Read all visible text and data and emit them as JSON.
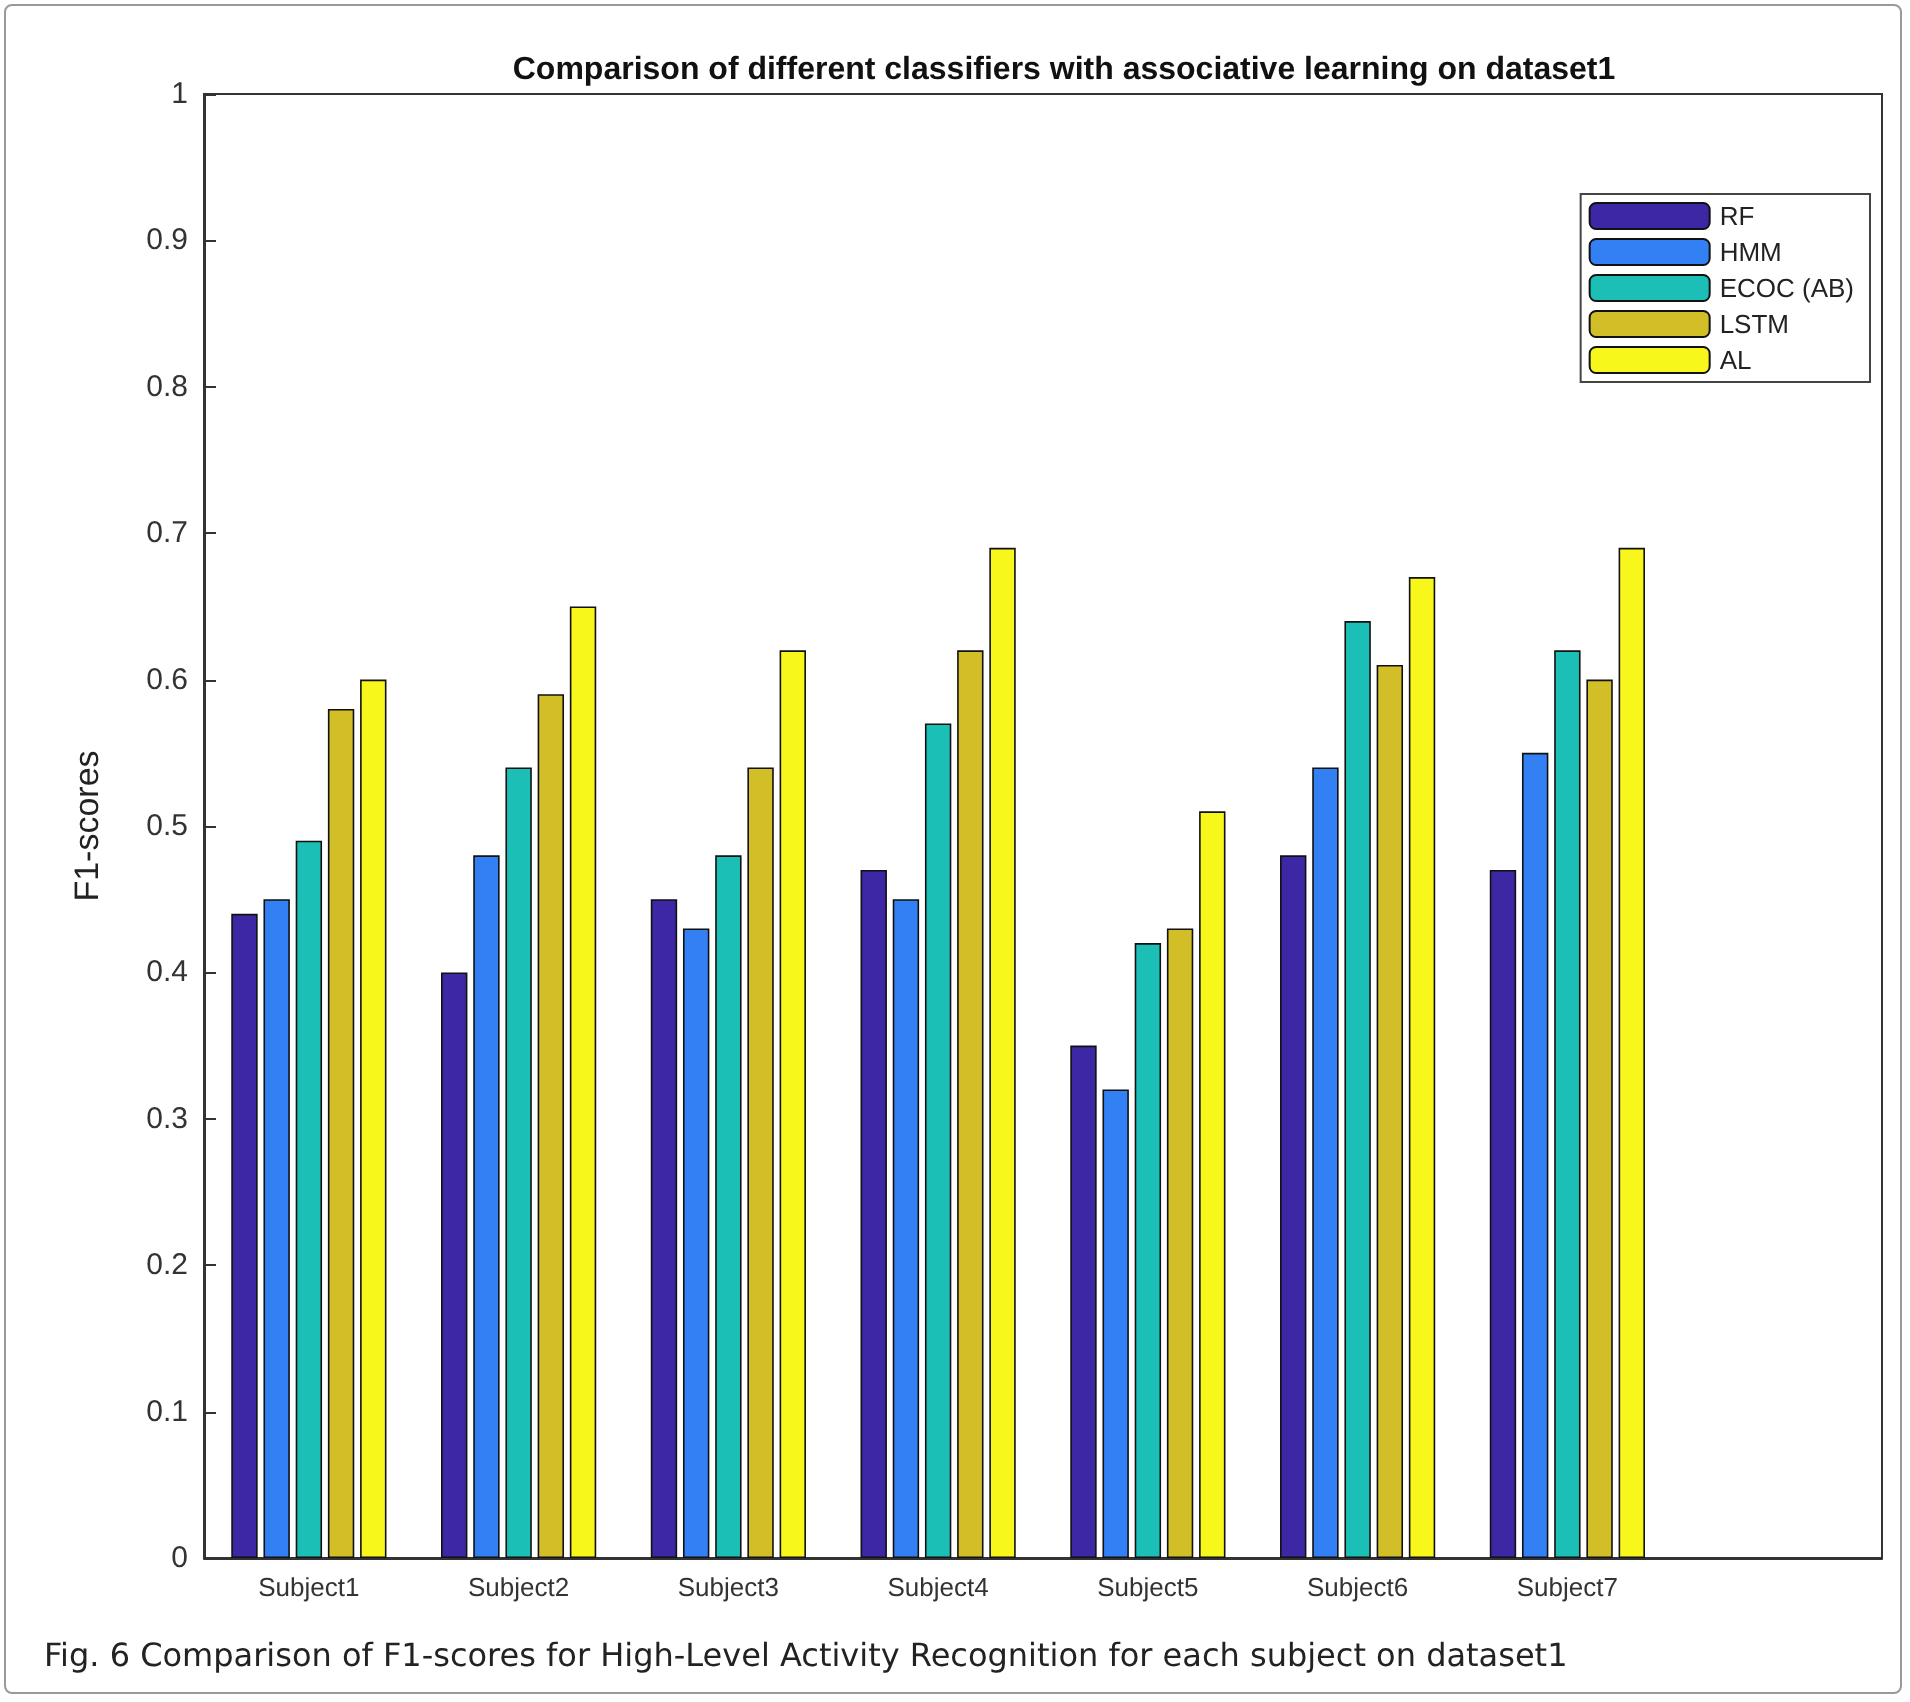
{
  "chart_data": {
    "type": "bar",
    "title": "Comparison of different classifiers with associative learning on dataset1",
    "ylabel": "F1-scores",
    "annotations": [
      "Fig. 6  Comparison of F1-scores for High-Level Activity Recognition for each subject on dataset1"
    ],
    "categories": [
      "Subject1",
      "Subject2",
      "Subject3",
      "Subject4",
      "Subject5",
      "Subject6",
      "Subject7",
      null
    ],
    "series": [
      {
        "name": "RF",
        "color": "#3d27a5",
        "values": [
          0.44,
          0.4,
          0.45,
          0.47,
          0.35,
          0.48,
          0.47,
          null
        ]
      },
      {
        "name": "HMM",
        "color": "#3380f5",
        "values": [
          0.45,
          0.48,
          0.43,
          0.45,
          0.32,
          0.54,
          0.55,
          null
        ]
      },
      {
        "name": "ECOC (AB)",
        "color": "#1bbfb5",
        "values": [
          0.49,
          0.54,
          0.48,
          0.57,
          0.42,
          0.64,
          0.62,
          null
        ]
      },
      {
        "name": "LSTM",
        "color": "#d2be27",
        "values": [
          0.58,
          0.59,
          0.54,
          0.62,
          0.43,
          0.61,
          0.6,
          null
        ]
      },
      {
        "name": "AL",
        "color": "#f7f71b",
        "values": [
          0.6,
          0.65,
          0.62,
          0.69,
          0.51,
          0.67,
          0.69,
          null
        ]
      }
    ],
    "ylim": [
      0,
      1
    ],
    "yticks": [
      0,
      0.1,
      0.2,
      0.3,
      0.4,
      0.5,
      0.6,
      0.7,
      0.8,
      0.9,
      1
    ],
    "grid": false,
    "legend": "top right"
  }
}
